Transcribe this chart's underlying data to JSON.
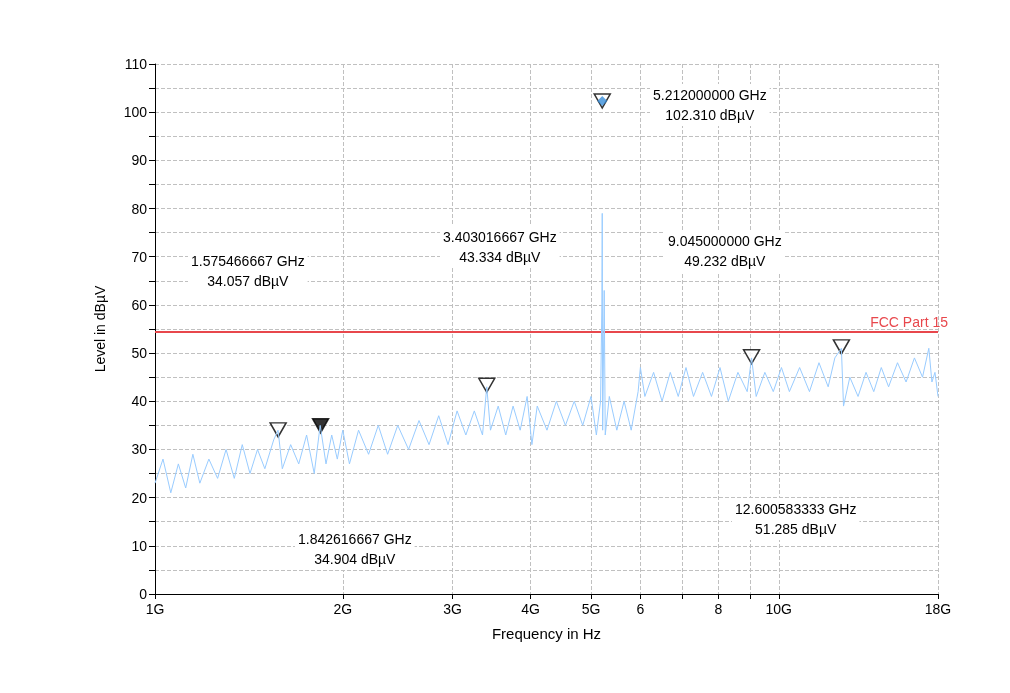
{
  "chart_data": {
    "type": "line",
    "xlabel": "Frequency in Hz",
    "ylabel": "Level in dBµV",
    "log": "x",
    "grid": true,
    "line_style": "solid",
    "marker": "none",
    "xlim": [
      1,
      18
    ],
    "xticks": [
      {
        "value": 1,
        "label": "1G"
      },
      {
        "value": 2,
        "label": "2G"
      },
      {
        "value": 3,
        "label": "3G"
      },
      {
        "value": 4,
        "label": "4G"
      },
      {
        "value": 5,
        "label": "5G"
      },
      6,
      {
        "value": 7,
        "label": null
      },
      8,
      {
        "value": 9,
        "label": null
      },
      {
        "value": 10,
        "label": "10G"
      },
      {
        "value": 18,
        "label": "18G"
      }
    ],
    "ylim": [
      0,
      110
    ],
    "yticks": [
      0,
      {
        "value": 5,
        "label": null
      },
      10,
      {
        "value": 15,
        "label": null
      },
      20,
      {
        "value": 25,
        "label": null
      },
      30,
      {
        "value": 35,
        "label": null
      },
      40,
      {
        "value": 45,
        "label": null
      },
      50,
      {
        "value": 55,
        "label": null
      },
      60,
      {
        "value": 65,
        "label": null
      },
      70,
      {
        "value": 75,
        "label": null
      },
      80,
      {
        "value": 85,
        "label": null
      },
      90,
      {
        "value": 95,
        "label": null
      },
      100,
      {
        "value": 105,
        "label": null
      },
      110
    ],
    "series": [
      {
        "color": "#99ccff",
        "x": [
          1.0,
          1.03,
          1.06,
          1.09,
          1.12,
          1.15,
          1.18,
          1.22,
          1.26,
          1.3,
          1.34,
          1.38,
          1.42,
          1.46,
          1.5,
          1.55,
          1.575,
          1.6,
          1.65,
          1.7,
          1.75,
          1.8,
          1.84,
          1.88,
          1.92,
          1.96,
          2.0,
          2.05,
          2.12,
          2.2,
          2.28,
          2.36,
          2.45,
          2.55,
          2.65,
          2.75,
          2.85,
          2.95,
          3.05,
          3.15,
          3.25,
          3.35,
          3.403,
          3.45,
          3.55,
          3.65,
          3.75,
          3.85,
          3.95,
          4.02,
          4.1,
          4.25,
          4.4,
          4.55,
          4.7,
          4.85,
          5.0,
          5.1,
          5.18,
          5.205,
          5.212,
          5.22,
          5.25,
          5.27,
          5.35,
          5.5,
          5.65,
          5.8,
          5.95,
          6.0,
          6.1,
          6.3,
          6.5,
          6.7,
          6.9,
          7.1,
          7.3,
          7.55,
          7.8,
          8.05,
          8.3,
          8.6,
          8.9,
          9.045,
          9.2,
          9.5,
          9.8,
          10.1,
          10.4,
          10.8,
          11.2,
          11.6,
          12.0,
          12.3,
          12.6,
          12.7,
          13.0,
          13.4,
          13.8,
          14.2,
          14.6,
          15.0,
          15.5,
          16.0,
          16.5,
          17.0,
          17.4,
          17.6,
          17.8,
          18.0
        ],
        "values": [
          23,
          28,
          21,
          27,
          22,
          29,
          23,
          28,
          24,
          30,
          24,
          31,
          25,
          30,
          26,
          32,
          34,
          26,
          31,
          27,
          33,
          25,
          35,
          27,
          33,
          28,
          34,
          27,
          34,
          29,
          35,
          29,
          35,
          30,
          36,
          31,
          37,
          31,
          38,
          33,
          38,
          33,
          43,
          34,
          39,
          33,
          39,
          34,
          41,
          31,
          39,
          34,
          40,
          35,
          40,
          35,
          41,
          33,
          40,
          60,
          79,
          34,
          63,
          33,
          41,
          34,
          40,
          34,
          42,
          47,
          41,
          46,
          40,
          46,
          41,
          47,
          41,
          46,
          41,
          47,
          40,
          46,
          42,
          49,
          41,
          46,
          42,
          47,
          42,
          47,
          42,
          48,
          43,
          49,
          51,
          39,
          45,
          41,
          46,
          42,
          47,
          43,
          48,
          44,
          49,
          45,
          51,
          44,
          46,
          41
        ]
      },
      {
        "type": "scatter",
        "marker": "triangle",
        "colors": [
          "#ffffff",
          "#000000",
          "#ffffff",
          "#ffffff",
          "#ffffff",
          "#ffffff"
        ],
        "x": [
          1.575466667,
          1.842616667,
          3.403016667,
          5.212,
          9.045,
          12.600583333
        ],
        "values": [
          34.057,
          34.904,
          43.334,
          102.31,
          49.232,
          51.285
        ]
      },
      {
        "type": "scatter",
        "marker": "diamond",
        "color": "#3a8fd9",
        "x": [
          5.212
        ],
        "values": [
          102.31
        ]
      }
    ],
    "ref_lines": [
      {
        "axis": "y",
        "value": 54.5,
        "label": "FCC Part 15",
        "color": "#e8474c"
      }
    ],
    "annotations": [
      "1.575466667 GHz\n34.057 dBµV",
      "1.842616667 GHz\n34.904 dBµV",
      "3.403016667 GHz\n43.334 dBµV",
      "5.212000000 GHz\n102.310 dBµV",
      "9.045000000 GHz\n49.232 dBµV",
      "12.600583333 GHz\n51.285 dBµV"
    ]
  }
}
